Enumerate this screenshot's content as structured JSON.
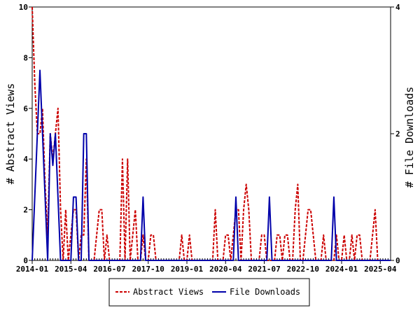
{
  "chart_data": {
    "type": "line",
    "x_tick_labels": [
      "2014-01",
      "2015-04",
      "2016-07",
      "2017-10",
      "2019-01",
      "2020-04",
      "2021-07",
      "2022-10",
      "2024-01",
      "2025-04"
    ],
    "y_left": {
      "label": "# Abstract Views",
      "ylim": [
        0,
        10
      ],
      "ticks": [
        "0",
        "2",
        "4",
        "6",
        "8",
        "10"
      ]
    },
    "y_right": {
      "label": "# File Downloads",
      "ylim": [
        0,
        4
      ],
      "ticks": [
        "0",
        "2",
        "4"
      ]
    },
    "x_range_months": [
      0,
      139
    ],
    "grid": false,
    "legend_position": "bottom-center",
    "series": [
      {
        "name": "Abstract Views",
        "axis": "left",
        "color": "#cc0000",
        "style": "dashed",
        "points": [
          [
            0,
            10
          ],
          [
            1,
            7
          ],
          [
            2,
            5
          ],
          [
            3,
            5
          ],
          [
            4,
            6
          ],
          [
            5,
            3
          ],
          [
            6,
            1
          ],
          [
            7,
            5
          ],
          [
            8,
            4
          ],
          [
            9,
            5
          ],
          [
            10,
            6
          ],
          [
            11,
            2
          ],
          [
            12,
            0
          ],
          [
            13,
            2
          ],
          [
            14,
            0
          ],
          [
            15,
            1
          ],
          [
            16,
            2
          ],
          [
            17,
            2
          ],
          [
            18,
            0
          ],
          [
            19,
            1
          ],
          [
            20,
            1
          ],
          [
            21,
            4
          ],
          [
            22,
            0
          ],
          [
            23,
            0
          ],
          [
            24,
            0
          ],
          [
            25,
            1
          ],
          [
            26,
            2
          ],
          [
            27,
            2
          ],
          [
            28,
            0
          ],
          [
            29,
            1
          ],
          [
            30,
            0
          ],
          [
            31,
            0
          ],
          [
            32,
            0
          ],
          [
            33,
            0
          ],
          [
            34,
            0
          ],
          [
            35,
            4
          ],
          [
            36,
            0
          ],
          [
            37,
            4
          ],
          [
            38,
            0
          ],
          [
            39,
            1
          ],
          [
            40,
            2
          ],
          [
            41,
            0
          ],
          [
            42,
            0
          ],
          [
            43,
            1
          ],
          [
            44,
            0
          ],
          [
            45,
            0
          ],
          [
            46,
            1
          ],
          [
            47,
            1
          ],
          [
            48,
            0
          ],
          [
            49,
            0
          ],
          [
            50,
            0
          ],
          [
            51,
            0
          ],
          [
            52,
            0
          ],
          [
            53,
            0
          ],
          [
            54,
            0
          ],
          [
            55,
            0
          ],
          [
            56,
            0
          ],
          [
            57,
            0
          ],
          [
            58,
            1
          ],
          [
            59,
            0
          ],
          [
            60,
            0
          ],
          [
            61,
            1
          ],
          [
            62,
            0
          ],
          [
            63,
            0
          ],
          [
            64,
            0
          ],
          [
            65,
            0
          ],
          [
            66,
            0
          ],
          [
            67,
            0
          ],
          [
            68,
            0
          ],
          [
            69,
            0
          ],
          [
            70,
            0
          ],
          [
            71,
            2
          ],
          [
            72,
            0
          ],
          [
            73,
            0
          ],
          [
            74,
            0
          ],
          [
            75,
            1
          ],
          [
            76,
            1
          ],
          [
            77,
            0
          ],
          [
            78,
            1
          ],
          [
            79,
            2
          ],
          [
            80,
            2
          ],
          [
            81,
            0
          ],
          [
            82,
            2
          ],
          [
            83,
            3
          ],
          [
            84,
            2
          ],
          [
            85,
            0
          ],
          [
            86,
            0
          ],
          [
            87,
            0
          ],
          [
            88,
            0
          ],
          [
            89,
            1
          ],
          [
            90,
            1
          ],
          [
            91,
            0
          ],
          [
            92,
            0
          ],
          [
            93,
            0
          ],
          [
            94,
            0
          ],
          [
            95,
            1
          ],
          [
            96,
            1
          ],
          [
            97,
            0
          ],
          [
            98,
            1
          ],
          [
            99,
            1
          ],
          [
            100,
            0
          ],
          [
            101,
            0
          ],
          [
            102,
            2
          ],
          [
            103,
            3
          ],
          [
            104,
            0
          ],
          [
            105,
            0
          ],
          [
            106,
            1
          ],
          [
            107,
            2
          ],
          [
            108,
            2
          ],
          [
            109,
            1
          ],
          [
            110,
            0
          ],
          [
            111,
            0
          ],
          [
            112,
            0
          ],
          [
            113,
            1
          ],
          [
            114,
            0
          ],
          [
            115,
            0
          ],
          [
            116,
            0
          ],
          [
            117,
            0
          ],
          [
            118,
            1
          ],
          [
            119,
            0
          ],
          [
            120,
            0
          ],
          [
            121,
            1
          ],
          [
            122,
            0
          ],
          [
            123,
            0
          ],
          [
            124,
            1
          ],
          [
            125,
            0
          ],
          [
            126,
            1
          ],
          [
            127,
            1
          ],
          [
            128,
            0
          ],
          [
            129,
            0
          ],
          [
            130,
            0
          ],
          [
            131,
            0
          ],
          [
            132,
            1
          ],
          [
            133,
            2
          ],
          [
            134,
            0
          ],
          [
            135,
            0
          ],
          [
            136,
            0
          ],
          [
            137,
            0
          ],
          [
            138,
            0
          ],
          [
            139,
            0
          ]
        ]
      },
      {
        "name": "File Downloads",
        "axis": "right",
        "color": "#0000aa",
        "style": "solid",
        "points": [
          [
            0,
            0
          ],
          [
            1,
            1
          ],
          [
            2,
            2
          ],
          [
            3,
            3
          ],
          [
            4,
            2
          ],
          [
            5,
            1
          ],
          [
            6,
            0
          ],
          [
            7,
            2
          ],
          [
            8,
            1.5
          ],
          [
            9,
            2
          ],
          [
            10,
            1
          ],
          [
            11,
            0
          ],
          [
            12,
            0
          ],
          [
            13,
            0
          ],
          [
            14,
            0
          ],
          [
            15,
            0
          ],
          [
            16,
            1
          ],
          [
            17,
            1
          ],
          [
            18,
            0
          ],
          [
            19,
            0
          ],
          [
            20,
            2
          ],
          [
            21,
            2
          ],
          [
            22,
            0
          ],
          [
            23,
            0
          ],
          [
            24,
            0
          ],
          [
            25,
            0
          ],
          [
            26,
            0
          ],
          [
            27,
            0
          ],
          [
            28,
            0
          ],
          [
            29,
            0
          ],
          [
            30,
            0
          ],
          [
            31,
            0
          ],
          [
            32,
            0
          ],
          [
            33,
            0
          ],
          [
            34,
            0
          ],
          [
            35,
            0
          ],
          [
            36,
            0
          ],
          [
            37,
            0
          ],
          [
            38,
            0
          ],
          [
            39,
            0
          ],
          [
            40,
            0
          ],
          [
            41,
            0
          ],
          [
            42,
            0
          ],
          [
            43,
            1
          ],
          [
            44,
            0
          ],
          [
            45,
            0
          ],
          [
            46,
            0
          ],
          [
            47,
            0
          ],
          [
            48,
            0
          ],
          [
            49,
            0
          ],
          [
            50,
            0
          ],
          [
            51,
            0
          ],
          [
            52,
            0
          ],
          [
            53,
            0
          ],
          [
            54,
            0
          ],
          [
            55,
            0
          ],
          [
            56,
            0
          ],
          [
            57,
            0
          ],
          [
            58,
            0
          ],
          [
            59,
            0
          ],
          [
            60,
            0
          ],
          [
            61,
            0
          ],
          [
            62,
            0
          ],
          [
            63,
            0
          ],
          [
            64,
            0
          ],
          [
            65,
            0
          ],
          [
            66,
            0
          ],
          [
            67,
            0
          ],
          [
            68,
            0
          ],
          [
            69,
            0
          ],
          [
            70,
            0
          ],
          [
            71,
            0
          ],
          [
            72,
            0
          ],
          [
            73,
            0
          ],
          [
            74,
            0
          ],
          [
            75,
            0
          ],
          [
            76,
            0
          ],
          [
            77,
            0
          ],
          [
            78,
            0
          ],
          [
            79,
            1
          ],
          [
            80,
            0
          ],
          [
            81,
            0
          ],
          [
            82,
            0
          ],
          [
            83,
            0
          ],
          [
            84,
            0
          ],
          [
            85,
            0
          ],
          [
            86,
            0
          ],
          [
            87,
            0
          ],
          [
            88,
            0
          ],
          [
            89,
            0
          ],
          [
            90,
            0
          ],
          [
            91,
            0
          ],
          [
            92,
            1
          ],
          [
            93,
            0
          ],
          [
            94,
            0
          ],
          [
            95,
            0
          ],
          [
            96,
            0
          ],
          [
            97,
            0
          ],
          [
            98,
            0
          ],
          [
            99,
            0
          ],
          [
            100,
            0
          ],
          [
            101,
            0
          ],
          [
            102,
            0
          ],
          [
            103,
            0
          ],
          [
            104,
            0
          ],
          [
            105,
            0
          ],
          [
            106,
            0
          ],
          [
            107,
            0
          ],
          [
            108,
            0
          ],
          [
            109,
            0
          ],
          [
            110,
            0
          ],
          [
            111,
            0
          ],
          [
            112,
            0
          ],
          [
            113,
            0
          ],
          [
            114,
            0
          ],
          [
            115,
            0
          ],
          [
            116,
            0
          ],
          [
            117,
            1
          ],
          [
            118,
            0
          ],
          [
            119,
            0
          ],
          [
            120,
            0
          ],
          [
            121,
            0
          ],
          [
            122,
            0
          ],
          [
            123,
            0
          ],
          [
            124,
            0
          ],
          [
            125,
            0
          ],
          [
            126,
            0
          ],
          [
            127,
            0
          ],
          [
            128,
            0
          ],
          [
            129,
            0
          ],
          [
            130,
            0
          ],
          [
            131,
            0
          ],
          [
            132,
            0
          ],
          [
            133,
            0
          ],
          [
            134,
            0
          ],
          [
            135,
            0
          ],
          [
            136,
            0
          ],
          [
            137,
            0
          ],
          [
            138,
            0
          ],
          [
            139,
            0
          ]
        ]
      }
    ]
  }
}
